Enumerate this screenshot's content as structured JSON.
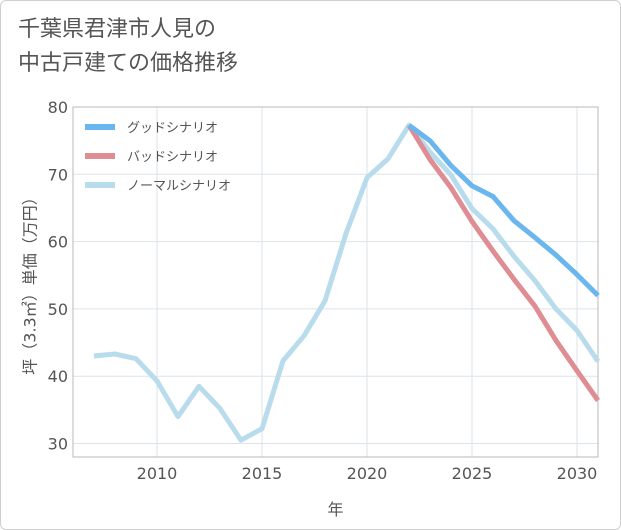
{
  "title_lines": [
    "千葉県君津市人見の",
    "中古戸建ての価格推移"
  ],
  "chart_data": {
    "type": "line",
    "xlabel": "年",
    "ylabel": "坪（3.3㎡）単価（万円）",
    "xlim": [
      2006,
      2031
    ],
    "ylim": [
      28,
      80
    ],
    "xticks": [
      2010,
      2015,
      2020,
      2025,
      2030
    ],
    "yticks": [
      30,
      40,
      50,
      60,
      70,
      80
    ],
    "grid": true,
    "legend_position": "top-left",
    "series": [
      {
        "name": "グッドシナリオ",
        "color": "#6ab6ee",
        "x": [
          2022,
          2023,
          2024,
          2025,
          2026,
          2027,
          2028,
          2029,
          2030,
          2031
        ],
        "y": [
          77.3,
          75.0,
          71.3,
          68.3,
          66.7,
          63.1,
          60.6,
          58.0,
          55.1,
          52.0
        ]
      },
      {
        "name": "バッドシナリオ",
        "color": "#df8c93",
        "x": [
          2022,
          2023,
          2024,
          2025,
          2026,
          2027,
          2028,
          2029,
          2030,
          2031
        ],
        "y": [
          77.3,
          72.2,
          68.0,
          63.0,
          58.6,
          54.4,
          50.4,
          45.3,
          40.8,
          36.4
        ]
      },
      {
        "name": "ノーマルシナリオ",
        "color": "#b9dcec",
        "x": [
          2007,
          2008,
          2009,
          2010,
          2011,
          2012,
          2013,
          2014,
          2015,
          2016,
          2017,
          2018,
          2019,
          2020,
          2021,
          2022,
          2023,
          2024,
          2025,
          2026,
          2027,
          2028,
          2029,
          2030,
          2031
        ],
        "y": [
          43.0,
          43.3,
          42.6,
          39.3,
          34.0,
          38.5,
          35.2,
          30.5,
          32.2,
          42.3,
          46.0,
          51.2,
          61.2,
          69.5,
          72.3,
          77.3,
          73.3,
          69.9,
          64.9,
          61.9,
          57.8,
          54.2,
          50.0,
          46.8,
          42.2
        ]
      }
    ]
  }
}
